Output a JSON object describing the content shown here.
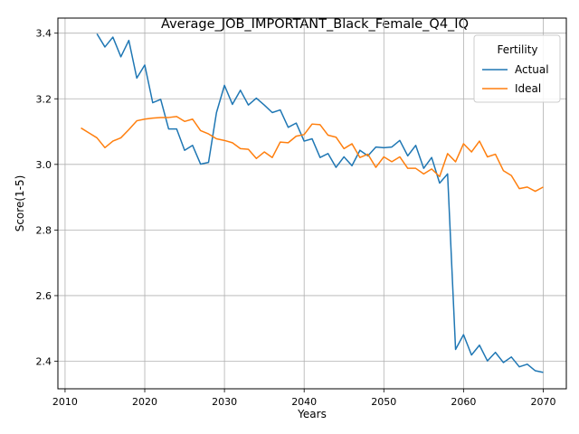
{
  "chart_data": {
    "type": "line",
    "title": "Average_JOB_IMPORTANT_Black_Female_Q4_IQ",
    "xlabel": "Years",
    "ylabel": "Score(1-5)",
    "xlim": [
      2009.1,
      2072.9
    ],
    "ylim": [
      2.316,
      3.446
    ],
    "xticks": [
      2010,
      2020,
      2030,
      2040,
      2050,
      2060,
      2070
    ],
    "yticks": [
      2.4,
      2.6,
      2.8,
      3.0,
      3.2,
      3.4
    ],
    "grid": true,
    "legend": {
      "title": "Fertility",
      "position": "top-right"
    },
    "series": [
      {
        "name": "Actual",
        "color": "#1f77b4",
        "x": [
          2014,
          2015,
          2016,
          2017,
          2018,
          2019,
          2020,
          2021,
          2022,
          2023,
          2024,
          2025,
          2026,
          2027,
          2028,
          2029,
          2030,
          2031,
          2032,
          2033,
          2034,
          2035,
          2036,
          2037,
          2038,
          2039,
          2040,
          2041,
          2042,
          2043,
          2044,
          2045,
          2046,
          2047,
          2048,
          2049,
          2050,
          2051,
          2052,
          2053,
          2054,
          2055,
          2056,
          2057,
          2058,
          2059,
          2060,
          2061,
          2062,
          2063,
          2064,
          2065,
          2066,
          2067,
          2068,
          2069,
          2070
        ],
        "values": [
          3.398,
          3.358,
          3.388,
          3.328,
          3.378,
          3.263,
          3.303,
          3.188,
          3.198,
          3.108,
          3.108,
          3.043,
          3.058,
          3.001,
          3.006,
          3.158,
          3.241,
          3.183,
          3.226,
          3.181,
          3.202,
          3.181,
          3.158,
          3.166,
          3.113,
          3.126,
          3.071,
          3.078,
          3.021,
          3.033,
          2.991,
          3.023,
          2.996,
          3.043,
          3.026,
          3.053,
          3.051,
          3.053,
          3.073,
          3.026,
          3.058,
          2.988,
          3.021,
          2.943,
          2.971,
          2.436,
          2.481,
          2.419,
          2.449,
          2.401,
          2.427,
          2.396,
          2.413,
          2.383,
          2.391,
          2.371,
          2.366
        ]
      },
      {
        "name": "Ideal",
        "color": "#ff7f0e",
        "x": [
          2012,
          2013,
          2014,
          2015,
          2016,
          2017,
          2018,
          2019,
          2020,
          2021,
          2022,
          2023,
          2024,
          2025,
          2026,
          2027,
          2028,
          2029,
          2030,
          2031,
          2032,
          2033,
          2034,
          2035,
          2036,
          2037,
          2038,
          2039,
          2040,
          2041,
          2042,
          2043,
          2044,
          2045,
          2046,
          2047,
          2048,
          2049,
          2050,
          2051,
          2052,
          2053,
          2054,
          2055,
          2056,
          2057,
          2058,
          2059,
          2060,
          2061,
          2062,
          2063,
          2064,
          2065,
          2066,
          2067,
          2068,
          2069,
          2070
        ],
        "values": [
          3.111,
          3.096,
          3.081,
          3.051,
          3.071,
          3.081,
          3.106,
          3.133,
          3.138,
          3.141,
          3.143,
          3.143,
          3.146,
          3.131,
          3.138,
          3.103,
          3.093,
          3.078,
          3.073,
          3.066,
          3.048,
          3.046,
          3.018,
          3.038,
          3.021,
          3.068,
          3.066,
          3.086,
          3.091,
          3.123,
          3.121,
          3.089,
          3.083,
          3.048,
          3.063,
          3.021,
          3.031,
          2.991,
          3.023,
          3.008,
          3.023,
          2.988,
          2.988,
          2.971,
          2.986,
          2.963,
          3.033,
          3.008,
          3.063,
          3.038,
          3.071,
          3.023,
          3.031,
          2.981,
          2.966,
          2.926,
          2.931,
          2.918,
          2.931
        ]
      }
    ]
  }
}
